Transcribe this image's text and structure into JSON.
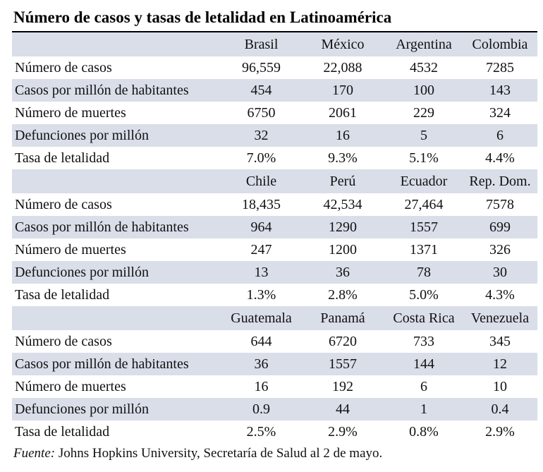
{
  "title": "Número de casos y tasas de letalidad en Latinoamérica",
  "sections": [
    {
      "countries": [
        "Brasil",
        "México",
        "Argentina",
        "Colombia"
      ],
      "rows": [
        {
          "label": "Número de casos",
          "values": [
            "96,559",
            "22,088",
            "4532",
            "7285"
          ]
        },
        {
          "label": "Casos por millón de habitantes",
          "values": [
            "454",
            "170",
            "100",
            "143"
          ]
        },
        {
          "label": "Número de muertes",
          "values": [
            "6750",
            "2061",
            "229",
            "324"
          ]
        },
        {
          "label": "Defunciones por millón",
          "values": [
            "32",
            "16",
            "5",
            "6"
          ]
        },
        {
          "label": "Tasa de letalidad",
          "values": [
            "7.0%",
            "9.3%",
            "5.1%",
            "4.4%"
          ]
        }
      ]
    },
    {
      "countries": [
        "Chile",
        "Perú",
        "Ecuador",
        "Rep. Dom."
      ],
      "rows": [
        {
          "label": "Número de casos",
          "values": [
            "18,435",
            "42,534",
            "27,464",
            "7578"
          ]
        },
        {
          "label": "Casos por millón de habitantes",
          "values": [
            "964",
            "1290",
            "1557",
            "699"
          ]
        },
        {
          "label": "Número de muertes",
          "values": [
            "247",
            "1200",
            "1371",
            "326"
          ]
        },
        {
          "label": "Defunciones por millón",
          "values": [
            "13",
            "36",
            "78",
            "30"
          ]
        },
        {
          "label": "Tasa de letalidad",
          "values": [
            "1.3%",
            "2.8%",
            "5.0%",
            "4.3%"
          ]
        }
      ]
    },
    {
      "countries": [
        "Guatemala",
        "Panamá",
        "Costa Rica",
        "Venezuela"
      ],
      "rows": [
        {
          "label": "Número de casos",
          "values": [
            "644",
            "6720",
            "733",
            "345"
          ]
        },
        {
          "label": "Casos por millón de habitantes",
          "values": [
            "36",
            "1557",
            "144",
            "12"
          ]
        },
        {
          "label": "Número de muertes",
          "values": [
            "16",
            "192",
            "6",
            "10"
          ]
        },
        {
          "label": "Defunciones por millón",
          "values": [
            "0.9",
            "44",
            "1",
            "0.4"
          ]
        },
        {
          "label": "Tasa de letalidad",
          "values": [
            "2.5%",
            "2.9%",
            "0.8%",
            "2.9%"
          ]
        }
      ]
    }
  ],
  "source": {
    "label": "Fuente:",
    "text": "Johns Hopkins University, Secretaría de Salud al 2 de mayo."
  },
  "colors": {
    "shaded_row": "#d9dee9",
    "text": "#111111"
  }
}
